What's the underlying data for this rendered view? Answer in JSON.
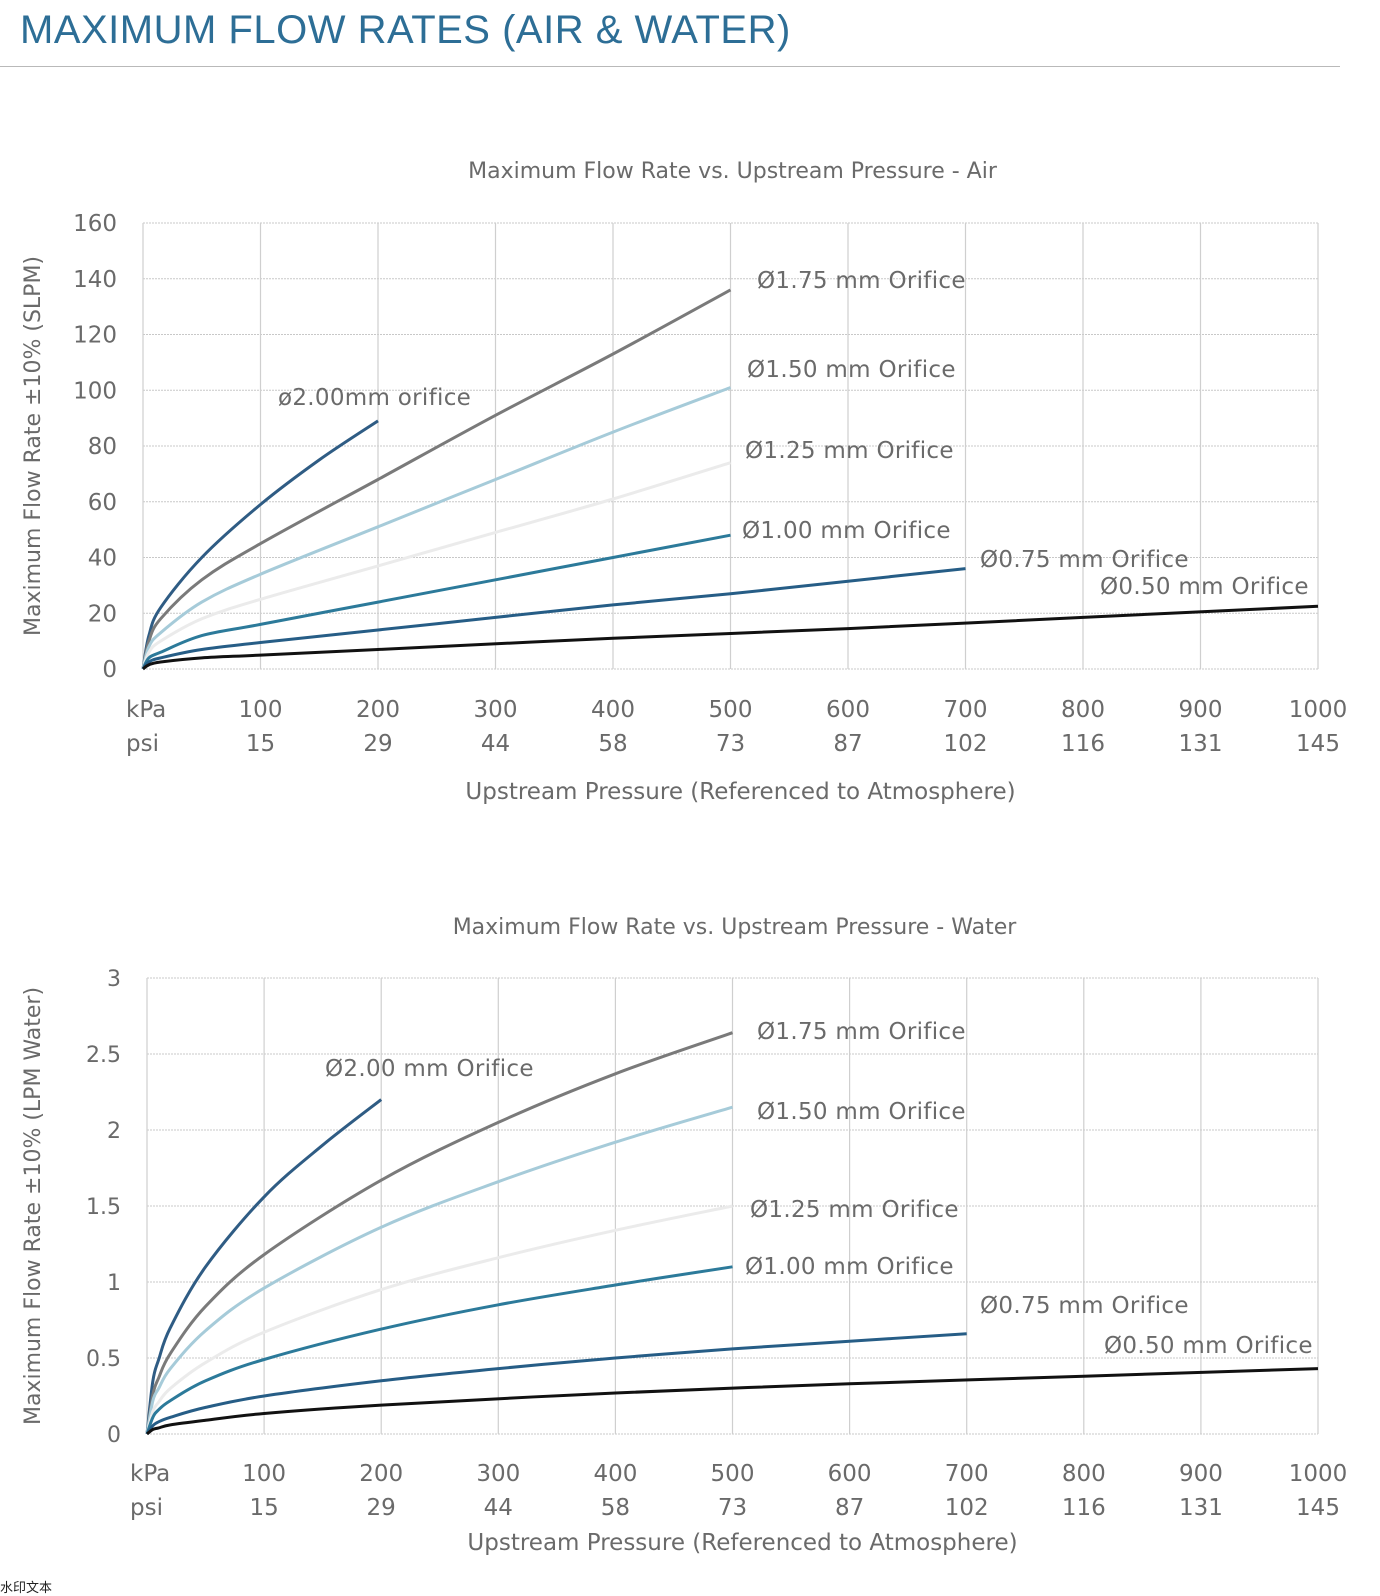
{
  "page": {
    "title": "MAXIMUM FLOW RATES (AIR & WATER)",
    "watermark": "水印文本"
  },
  "colors": {
    "d200": "#2f5c84",
    "d175": "#7a7a7a",
    "d150": "#a6cbd9",
    "d125": "#ebebeb",
    "d100": "#2c7a9a",
    "d075": "#265d86",
    "d050": "#111111"
  },
  "chart_data": [
    {
      "type": "line",
      "title": "Maximum Flow Rate vs. Upstream Pressure - Air",
      "ylabel": "Maximum Flow Rate ±10% (SLPM)",
      "xlabel": "Upstream Pressure (Referenced to Atmosphere)",
      "xlim": [
        0,
        1000
      ],
      "ylim": [
        0,
        160
      ],
      "yticks": [
        "0",
        "20",
        "40",
        "60",
        "80",
        "100",
        "120",
        "140",
        "160"
      ],
      "x_units": [
        "kPa",
        "psi"
      ],
      "x_ticks_kpa": [
        "100",
        "200",
        "300",
        "400",
        "500",
        "600",
        "700",
        "800",
        "900",
        "1000"
      ],
      "x_ticks_psi": [
        "15",
        "29",
        "44",
        "58",
        "73",
        "87",
        "102",
        "116",
        "131",
        "145"
      ],
      "series": [
        {
          "name": "ø2.00mm orifice",
          "color_key": "d200",
          "x": [
            0,
            5,
            15,
            50,
            100,
            150,
            200
          ],
          "y": [
            0,
            12,
            22,
            40,
            59,
            75,
            89
          ]
        },
        {
          "name": "Ø1.75 mm Orifice",
          "color_key": "d175",
          "x": [
            0,
            5,
            15,
            50,
            100,
            200,
            300,
            400,
            500
          ],
          "y": [
            0,
            10,
            18,
            32,
            45,
            68,
            91,
            113,
            136
          ]
        },
        {
          "name": "Ø1.50 mm Orifice",
          "color_key": "d150",
          "x": [
            0,
            5,
            15,
            50,
            100,
            200,
            300,
            400,
            500
          ],
          "y": [
            0,
            8,
            13,
            24,
            34,
            51,
            68,
            85,
            101
          ]
        },
        {
          "name": "Ø1.25 mm Orifice",
          "color_key": "d125",
          "x": [
            0,
            5,
            15,
            50,
            100,
            200,
            300,
            400,
            500
          ],
          "y": [
            0,
            6,
            10,
            18,
            25,
            37,
            49,
            61,
            74
          ]
        },
        {
          "name": "Ø1.00 mm Orifice",
          "color_key": "d100",
          "x": [
            0,
            5,
            15,
            50,
            100,
            200,
            300,
            400,
            500
          ],
          "y": [
            0,
            4,
            6,
            12,
            16,
            24,
            32,
            40,
            48
          ]
        },
        {
          "name": "Ø0.75 mm Orifice",
          "color_key": "d075",
          "x": [
            0,
            5,
            15,
            50,
            100,
            200,
            300,
            400,
            500,
            600,
            700
          ],
          "y": [
            0,
            2.5,
            4,
            7,
            9.5,
            14,
            18.5,
            23,
            27,
            31.5,
            36
          ]
        },
        {
          "name": "Ø0.50 mm Orifice",
          "color_key": "d050",
          "x": [
            0,
            5,
            15,
            50,
            100,
            200,
            400,
            600,
            800,
            1000
          ],
          "y": [
            0,
            1.5,
            2.5,
            4,
            5,
            7,
            11,
            14.5,
            18.5,
            22.5
          ]
        }
      ]
    },
    {
      "type": "line",
      "title": "Maximum Flow Rate vs. Upstream Pressure - Water",
      "ylabel": "Maximum Flow Rate ±10% (LPM Water)",
      "xlabel": "Upstream Pressure (Referenced to Atmosphere)",
      "xlim": [
        0,
        1000
      ],
      "ylim": [
        0,
        3
      ],
      "yticks": [
        "0",
        "0.5",
        "1",
        "1.5",
        "2",
        "2.5",
        "3"
      ],
      "x_units": [
        "kPa",
        "psi"
      ],
      "x_ticks_kpa": [
        "100",
        "200",
        "300",
        "400",
        "500",
        "600",
        "700",
        "800",
        "900",
        "1000"
      ],
      "x_ticks_psi": [
        "15",
        "29",
        "44",
        "58",
        "73",
        "87",
        "102",
        "116",
        "131",
        "145"
      ],
      "series": [
        {
          "name": "Ø2.00 mm Orifice",
          "color_key": "d200",
          "x": [
            0,
            5,
            10,
            20,
            50,
            100,
            150,
            200
          ],
          "y": [
            0,
            0.35,
            0.49,
            0.7,
            1.1,
            1.56,
            1.9,
            2.2
          ]
        },
        {
          "name": "Ø1.75 mm Orifice",
          "color_key": "d175",
          "x": [
            0,
            5,
            10,
            20,
            50,
            100,
            200,
            300,
            400,
            500
          ],
          "y": [
            0,
            0.26,
            0.37,
            0.53,
            0.84,
            1.18,
            1.67,
            2.05,
            2.37,
            2.64
          ]
        },
        {
          "name": "Ø1.50 mm Orifice",
          "color_key": "d150",
          "x": [
            0,
            5,
            10,
            20,
            50,
            100,
            200,
            300,
            400,
            500
          ],
          "y": [
            0,
            0.22,
            0.3,
            0.43,
            0.68,
            0.96,
            1.36,
            1.66,
            1.92,
            2.15
          ]
        },
        {
          "name": "Ø1.25 mm Orifice",
          "color_key": "d125",
          "x": [
            0,
            5,
            10,
            20,
            50,
            100,
            200,
            300,
            400,
            500
          ],
          "y": [
            0,
            0.15,
            0.21,
            0.3,
            0.47,
            0.67,
            0.95,
            1.16,
            1.34,
            1.5
          ]
        },
        {
          "name": "Ø1.00 mm Orifice",
          "color_key": "d100",
          "x": [
            0,
            5,
            10,
            20,
            50,
            100,
            200,
            300,
            400,
            500
          ],
          "y": [
            0,
            0.11,
            0.16,
            0.22,
            0.35,
            0.49,
            0.69,
            0.85,
            0.98,
            1.1
          ]
        },
        {
          "name": "Ø0.75 mm Orifice",
          "color_key": "d075",
          "x": [
            0,
            5,
            10,
            20,
            50,
            100,
            200,
            300,
            400,
            500,
            600,
            700
          ],
          "y": [
            0,
            0.055,
            0.08,
            0.11,
            0.175,
            0.25,
            0.35,
            0.43,
            0.5,
            0.56,
            0.61,
            0.66
          ]
        },
        {
          "name": "Ø0.50 mm Orifice",
          "color_key": "d050",
          "x": [
            0,
            5,
            10,
            20,
            50,
            100,
            200,
            400,
            600,
            800,
            1000
          ],
          "y": [
            0,
            0.03,
            0.04,
            0.06,
            0.09,
            0.135,
            0.19,
            0.27,
            0.33,
            0.38,
            0.43
          ]
        }
      ]
    }
  ]
}
